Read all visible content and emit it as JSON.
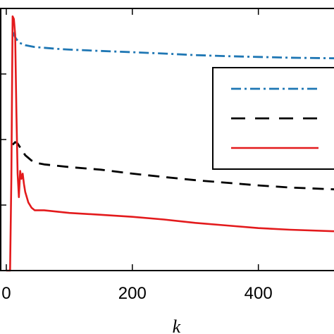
{
  "chart_data": {
    "type": "line",
    "xlabel": "k",
    "ylabel": "",
    "title": "",
    "xlim": [
      -10,
      520
    ],
    "ylim": [
      0,
      1.0
    ],
    "xticks": [
      0,
      200,
      400
    ],
    "xtick_labels": [
      "0",
      "200",
      "400"
    ],
    "yticks": [
      0,
      0.25,
      0.5,
      0.75,
      1.0
    ],
    "grid": false,
    "legend": {
      "position": "right",
      "entries": [
        "",
        "",
        ""
      ]
    },
    "series": [
      {
        "style": "dashdot",
        "color": "#1f77b4",
        "x": [
          10,
          14,
          20,
          30,
          45,
          60,
          80,
          100,
          150,
          200,
          250,
          300,
          350,
          400,
          450,
          520
        ],
        "y": [
          0.91,
          0.89,
          0.87,
          0.86,
          0.853,
          0.85,
          0.846,
          0.843,
          0.838,
          0.833,
          0.828,
          0.822,
          0.818,
          0.815,
          0.812,
          0.81
        ]
      },
      {
        "style": "dashed",
        "color": "#000000",
        "x": [
          10,
          14,
          18,
          22,
          26,
          30,
          35,
          40,
          50,
          60,
          80,
          100,
          150,
          200,
          250,
          300,
          350,
          400,
          450,
          520
        ],
        "y": [
          0.48,
          0.49,
          0.485,
          0.47,
          0.455,
          0.44,
          0.43,
          0.42,
          0.41,
          0.405,
          0.4,
          0.395,
          0.385,
          0.37,
          0.357,
          0.345,
          0.335,
          0.325,
          0.317,
          0.31
        ]
      },
      {
        "style": "solid",
        "color": "#e31a1c",
        "x": [
          0,
          2,
          4,
          6,
          8,
          10,
          12,
          14,
          16,
          18,
          20,
          22,
          24,
          26,
          28,
          30,
          35,
          40,
          45,
          50,
          60,
          80,
          100,
          150,
          200,
          250,
          300,
          350,
          400,
          450,
          520
        ],
        "y": [
          0.0,
          0.0,
          0.0,
          0.0,
          0.35,
          0.97,
          0.96,
          0.9,
          0.6,
          0.37,
          0.28,
          0.38,
          0.35,
          0.37,
          0.33,
          0.3,
          0.26,
          0.24,
          0.23,
          0.23,
          0.23,
          0.225,
          0.22,
          0.213,
          0.205,
          0.195,
          0.182,
          0.172,
          0.162,
          0.156,
          0.15
        ]
      }
    ]
  }
}
